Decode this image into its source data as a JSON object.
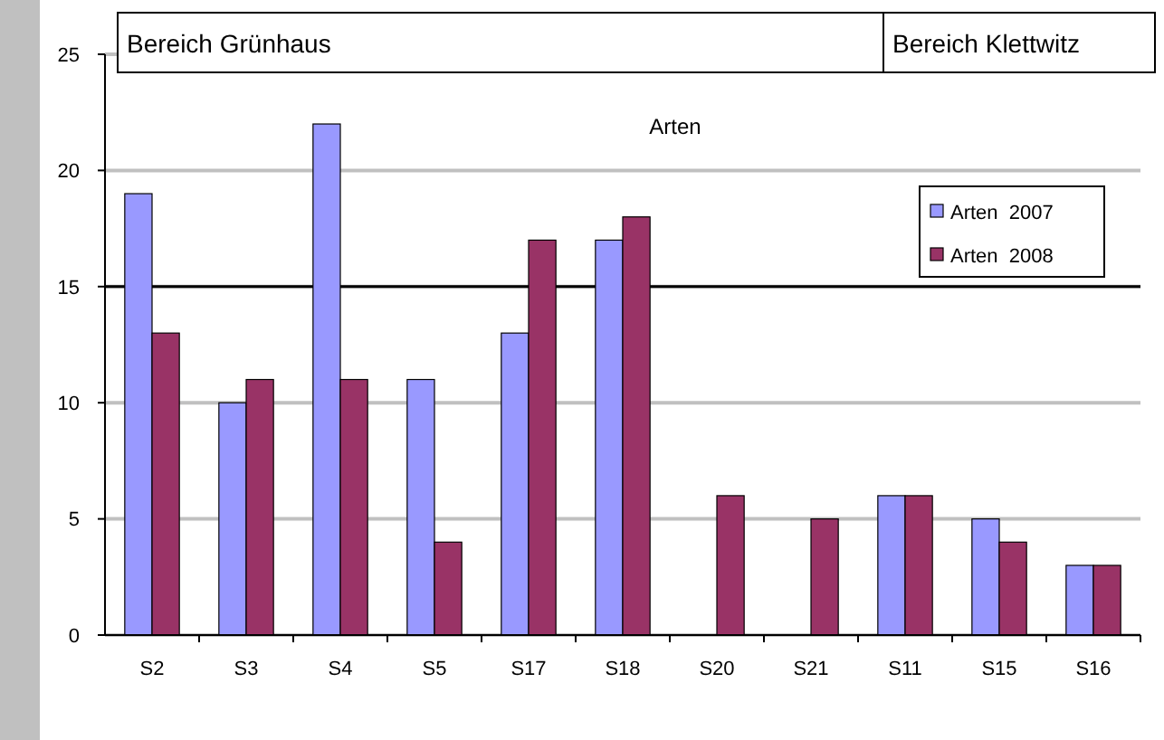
{
  "chart_data": {
    "type": "bar",
    "title": "Arten",
    "annotations": [
      "Bereich Grünhaus",
      "Bereich Klettwitz"
    ],
    "categories": [
      "S2",
      "S3",
      "S4",
      "S5",
      "S17",
      "S18",
      "S20",
      "S21",
      "S11",
      "S15",
      "S16"
    ],
    "series": [
      {
        "name": "Arten  2007",
        "color": "#9999ff",
        "values": [
          19,
          10,
          22,
          11,
          13,
          17,
          0,
          0,
          6,
          5,
          3
        ]
      },
      {
        "name": "Arten  2008",
        "color": "#993366",
        "values": [
          13,
          11,
          11,
          4,
          17,
          18,
          6,
          5,
          6,
          4,
          3
        ]
      }
    ],
    "ylim": [
      0,
      25
    ],
    "yticks": [
      0,
      5,
      10,
      15,
      20,
      25
    ],
    "grid": "y",
    "ref_lines": [
      {
        "axis": "y",
        "value": 15,
        "color": "#000000"
      }
    ],
    "legend": "top right"
  }
}
